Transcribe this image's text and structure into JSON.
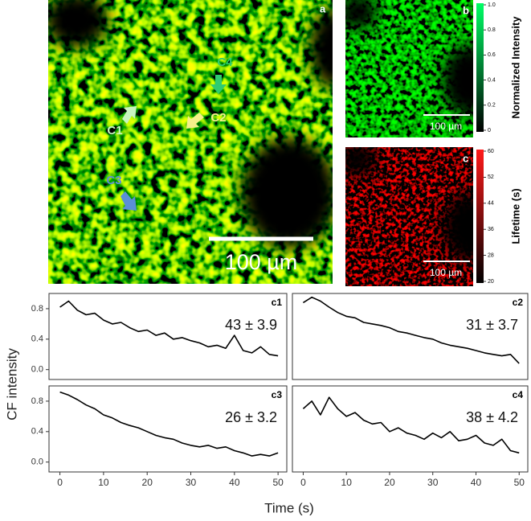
{
  "panels": [
    {
      "label": "a",
      "scalebar": "100 µm",
      "annotations": [
        "C4",
        "C2",
        "C1",
        "C3"
      ]
    },
    {
      "label": "b",
      "scalebar": "100 µm",
      "colorbar": {
        "label": "Normalized Intensity",
        "clim": [
          0,
          1
        ],
        "ticks": [
          {
            "value": 0,
            "label": "0"
          },
          0.2,
          0.4,
          0.6,
          0.8,
          {
            "value": 1,
            "label": "1.0"
          }
        ]
      }
    },
    {
      "label": "c",
      "scalebar": "100 µm",
      "colorbar": {
        "label": "Lifetime (s)",
        "clim": [
          20,
          60
        ],
        "ticks": [
          20,
          28,
          36,
          44,
          52,
          60
        ]
      }
    }
  ],
  "ylabel": "CF intensity",
  "xlabel": "Time (s)",
  "chart_data": [
    {
      "type": "line",
      "label": "c1",
      "annotation": "43 ± 3.9",
      "xlim": [
        -2.5,
        52
      ],
      "ylim": [
        -0.13,
        1.0
      ],
      "yticks": [
        {
          "value": 0,
          "label": "0.0"
        },
        0.4,
        0.8
      ],
      "x": [
        0,
        2,
        4,
        6,
        8,
        10,
        12,
        14,
        16,
        18,
        20,
        22,
        24,
        26,
        28,
        30,
        32,
        34,
        36,
        38,
        40,
        42,
        44,
        46,
        48,
        50
      ],
      "series": [
        {
          "color": "#000000",
          "values": [
            0.82,
            0.9,
            0.78,
            0.72,
            0.74,
            0.65,
            0.6,
            0.62,
            0.55,
            0.5,
            0.52,
            0.45,
            0.48,
            0.4,
            0.42,
            0.38,
            0.35,
            0.3,
            0.32,
            0.28,
            0.45,
            0.25,
            0.22,
            0.3,
            0.2,
            0.18
          ]
        }
      ]
    },
    {
      "type": "line",
      "label": "c2",
      "annotation": "31 ± 3.7",
      "xlim": [
        -2.5,
        52
      ],
      "ylim": [
        -0.13,
        1.0
      ],
      "x": [
        0,
        2,
        4,
        6,
        8,
        10,
        12,
        14,
        16,
        18,
        20,
        22,
        24,
        26,
        28,
        30,
        32,
        34,
        36,
        38,
        40,
        42,
        44,
        46,
        48,
        50
      ],
      "series": [
        {
          "color": "#000000",
          "values": [
            0.88,
            0.95,
            0.9,
            0.82,
            0.75,
            0.7,
            0.68,
            0.62,
            0.6,
            0.58,
            0.55,
            0.5,
            0.48,
            0.45,
            0.42,
            0.4,
            0.35,
            0.32,
            0.3,
            0.28,
            0.25,
            0.22,
            0.2,
            0.18,
            0.2,
            0.08
          ]
        }
      ]
    },
    {
      "type": "line",
      "label": "c3",
      "annotation": "26 ± 3.2",
      "xlim": [
        -2.5,
        52
      ],
      "ylim": [
        -0.13,
        1.0
      ],
      "yticks": [
        {
          "value": 0,
          "label": "0.0"
        },
        0.4,
        0.8
      ],
      "xticks": [
        0,
        10,
        20,
        30,
        40,
        50
      ],
      "x": [
        0,
        2,
        4,
        6,
        8,
        10,
        12,
        14,
        16,
        18,
        20,
        22,
        24,
        26,
        28,
        30,
        32,
        34,
        36,
        38,
        40,
        42,
        44,
        46,
        48,
        50
      ],
      "series": [
        {
          "color": "#000000",
          "values": [
            0.92,
            0.88,
            0.82,
            0.75,
            0.7,
            0.62,
            0.58,
            0.52,
            0.48,
            0.45,
            0.4,
            0.35,
            0.32,
            0.3,
            0.25,
            0.22,
            0.2,
            0.22,
            0.18,
            0.2,
            0.15,
            0.12,
            0.08,
            0.1,
            0.08,
            0.12
          ]
        }
      ]
    },
    {
      "type": "line",
      "label": "c4",
      "annotation": "38 ± 4.2",
      "xlim": [
        -2.5,
        52
      ],
      "ylim": [
        -0.13,
        1.0
      ],
      "xticks": [
        0,
        10,
        20,
        30,
        40,
        50
      ],
      "x": [
        0,
        2,
        4,
        6,
        8,
        10,
        12,
        14,
        16,
        18,
        20,
        22,
        24,
        26,
        28,
        30,
        32,
        34,
        36,
        38,
        40,
        42,
        44,
        46,
        48,
        50
      ],
      "series": [
        {
          "color": "#000000",
          "values": [
            0.7,
            0.8,
            0.62,
            0.85,
            0.7,
            0.6,
            0.65,
            0.55,
            0.5,
            0.52,
            0.4,
            0.45,
            0.38,
            0.35,
            0.3,
            0.38,
            0.32,
            0.4,
            0.28,
            0.3,
            0.35,
            0.25,
            0.22,
            0.3,
            0.15,
            0.12
          ]
        }
      ]
    }
  ]
}
